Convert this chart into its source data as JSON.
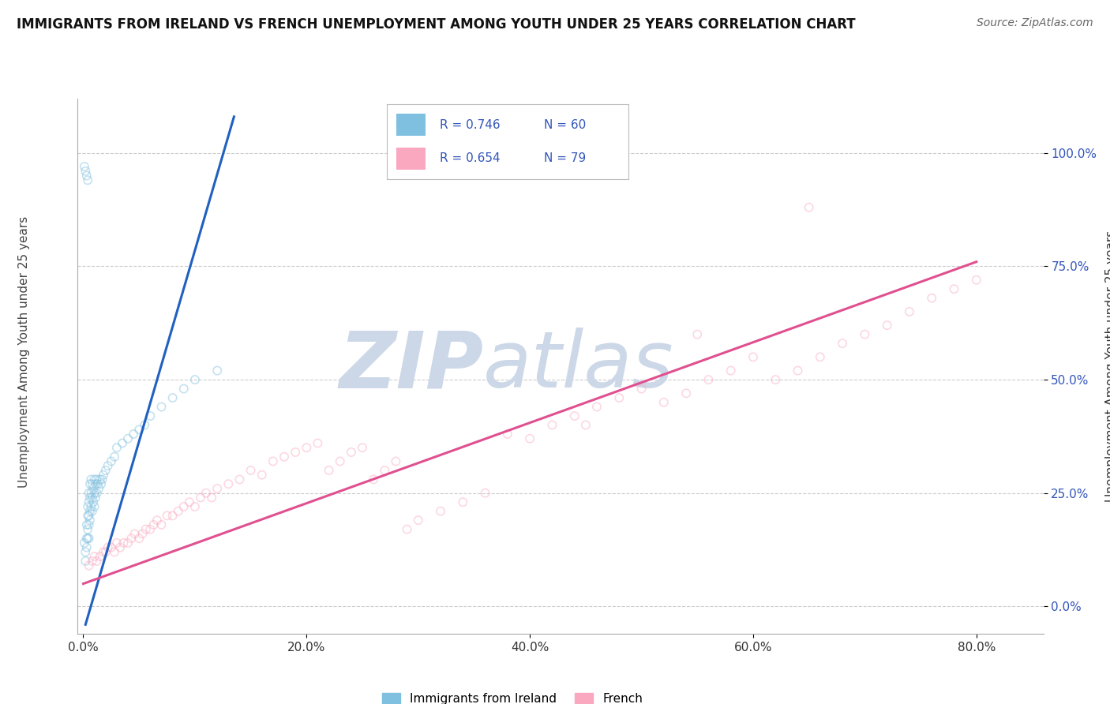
{
  "title": "IMMIGRANTS FROM IRELAND VS FRENCH UNEMPLOYMENT AMONG YOUTH UNDER 25 YEARS CORRELATION CHART",
  "source": "Source: ZipAtlas.com",
  "ylabel": "Unemployment Among Youth under 25 years",
  "xlabel_ticks": [
    "0.0%",
    "20.0%",
    "40.0%",
    "60.0%",
    "80.0%"
  ],
  "xlabel_values": [
    0.0,
    0.2,
    0.4,
    0.6,
    0.8
  ],
  "ytick_labels": [
    "0.0%",
    "25.0%",
    "50.0%",
    "75.0%",
    "100.0%"
  ],
  "ytick_values": [
    0.0,
    0.25,
    0.5,
    0.75,
    1.0
  ],
  "xlim": [
    -0.005,
    0.86
  ],
  "ylim": [
    -0.06,
    1.12
  ],
  "blue_R": "0.746",
  "blue_N": "60",
  "pink_R": "0.654",
  "pink_N": "79",
  "blue_color": "#7fbfdf",
  "pink_color": "#f9a8c0",
  "blue_line_color": "#2060c0",
  "pink_line_color": "#e05090",
  "legend_label_blue": "Immigrants from Ireland",
  "legend_label_pink": "French",
  "watermark_zip": "ZIP",
  "watermark_atlas": "atlas",
  "watermark_color": "#ccd8e8",
  "title_color": "#111111",
  "label_color": "#3355bb",
  "blue_scatter_x": [
    0.001,
    0.002,
    0.002,
    0.003,
    0.003,
    0.003,
    0.004,
    0.004,
    0.004,
    0.004,
    0.005,
    0.005,
    0.005,
    0.005,
    0.005,
    0.006,
    0.006,
    0.006,
    0.006,
    0.007,
    0.007,
    0.007,
    0.008,
    0.008,
    0.008,
    0.009,
    0.009,
    0.01,
    0.01,
    0.01,
    0.011,
    0.011,
    0.012,
    0.012,
    0.013,
    0.014,
    0.015,
    0.016,
    0.017,
    0.018,
    0.02,
    0.022,
    0.025,
    0.028,
    0.03,
    0.035,
    0.04,
    0.045,
    0.05,
    0.055,
    0.06,
    0.07,
    0.08,
    0.09,
    0.1,
    0.12,
    0.001,
    0.002,
    0.003,
    0.004
  ],
  "blue_scatter_y": [
    0.14,
    0.12,
    0.1,
    0.18,
    0.15,
    0.13,
    0.22,
    0.2,
    0.17,
    0.15,
    0.25,
    0.23,
    0.2,
    0.18,
    0.15,
    0.27,
    0.24,
    0.21,
    0.19,
    0.28,
    0.25,
    0.22,
    0.27,
    0.24,
    0.21,
    0.26,
    0.23,
    0.28,
    0.25,
    0.22,
    0.27,
    0.24,
    0.28,
    0.25,
    0.27,
    0.26,
    0.28,
    0.27,
    0.28,
    0.29,
    0.3,
    0.31,
    0.32,
    0.33,
    0.35,
    0.36,
    0.37,
    0.38,
    0.39,
    0.4,
    0.42,
    0.44,
    0.46,
    0.48,
    0.5,
    0.52,
    0.97,
    0.96,
    0.95,
    0.94
  ],
  "pink_scatter_x": [
    0.005,
    0.008,
    0.01,
    0.012,
    0.015,
    0.018,
    0.02,
    0.022,
    0.025,
    0.028,
    0.03,
    0.033,
    0.036,
    0.04,
    0.043,
    0.046,
    0.05,
    0.053,
    0.056,
    0.06,
    0.063,
    0.066,
    0.07,
    0.075,
    0.08,
    0.085,
    0.09,
    0.095,
    0.1,
    0.105,
    0.11,
    0.115,
    0.12,
    0.13,
    0.14,
    0.15,
    0.16,
    0.17,
    0.18,
    0.19,
    0.2,
    0.21,
    0.22,
    0.23,
    0.24,
    0.25,
    0.26,
    0.27,
    0.28,
    0.29,
    0.3,
    0.32,
    0.34,
    0.36,
    0.38,
    0.4,
    0.42,
    0.44,
    0.46,
    0.48,
    0.5,
    0.52,
    0.54,
    0.56,
    0.58,
    0.6,
    0.62,
    0.64,
    0.66,
    0.68,
    0.7,
    0.72,
    0.74,
    0.76,
    0.78,
    0.8,
    0.65,
    0.55,
    0.45
  ],
  "pink_scatter_y": [
    0.09,
    0.1,
    0.11,
    0.1,
    0.11,
    0.12,
    0.12,
    0.13,
    0.13,
    0.12,
    0.14,
    0.13,
    0.14,
    0.14,
    0.15,
    0.16,
    0.15,
    0.16,
    0.17,
    0.17,
    0.18,
    0.19,
    0.18,
    0.2,
    0.2,
    0.21,
    0.22,
    0.23,
    0.22,
    0.24,
    0.25,
    0.24,
    0.26,
    0.27,
    0.28,
    0.3,
    0.29,
    0.32,
    0.33,
    0.34,
    0.35,
    0.36,
    0.3,
    0.32,
    0.34,
    0.35,
    0.28,
    0.3,
    0.32,
    0.17,
    0.19,
    0.21,
    0.23,
    0.25,
    0.38,
    0.37,
    0.4,
    0.42,
    0.44,
    0.46,
    0.48,
    0.45,
    0.47,
    0.5,
    0.52,
    0.55,
    0.5,
    0.52,
    0.55,
    0.58,
    0.6,
    0.62,
    0.65,
    0.68,
    0.7,
    0.72,
    0.88,
    0.6,
    0.4
  ],
  "blue_line_x": [
    0.002,
    0.135
  ],
  "blue_line_y": [
    -0.04,
    1.08
  ],
  "pink_line_x": [
    0.0,
    0.8
  ],
  "pink_line_y": [
    0.05,
    0.76
  ],
  "grid_color": "#cccccc",
  "grid_style": "--",
  "bg_color": "#ffffff",
  "scatter_size": 55,
  "scatter_alpha": 0.45,
  "scatter_linewidth": 1.2
}
